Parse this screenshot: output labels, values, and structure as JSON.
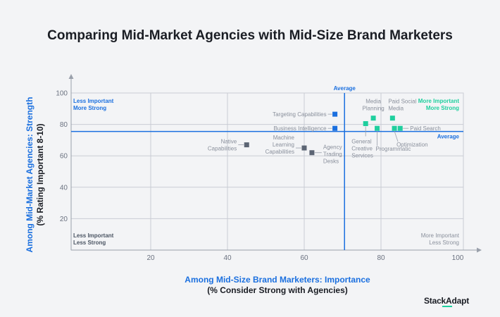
{
  "title": "Comparing Mid-Market Agencies with Mid-Size Brand Marketers",
  "brand": "StackAdapt",
  "colors": {
    "grid": "#c9ccd4",
    "axis": "#9aa0ab",
    "average_line": "#1a6fdf",
    "blue_marker": "#1a6fdf",
    "teal_marker": "#1fcf9e",
    "gray_marker": "#5c6574",
    "teal_text": "#1fcf9e",
    "gray_text": "#8a909c"
  },
  "chart_data": {
    "type": "scatter",
    "title": "Comparing Mid-Market Agencies with Mid-Size Brand Marketers",
    "xlabel": "Among Mid-Size Brand Marketers: Importance",
    "xlabel_sub": "(% Consider Strong with Agencies)",
    "ylabel": "Among Mid-Market Agencies: Strength",
    "ylabel_sub": "(% Rating Important 8-10)",
    "xlim": [
      0,
      100
    ],
    "ylim": [
      0,
      100
    ],
    "xticks": [
      20,
      40,
      60,
      80,
      100
    ],
    "yticks": [
      20,
      40,
      60,
      80,
      100
    ],
    "average_x": 70.5,
    "average_y": 75.5,
    "average_label": "Average",
    "quadrant_labels": {
      "top_left": [
        "Less Important",
        "More Strong"
      ],
      "top_right": [
        "More Important",
        "More Strong"
      ],
      "bottom_left": [
        "Less Important",
        "Less Strong"
      ],
      "bottom_right": [
        "More Important",
        "Less Strong"
      ]
    },
    "points": [
      {
        "label": "Targeting Capabilities",
        "x": 68,
        "y": 86.5,
        "group": "blue"
      },
      {
        "label": "Business Intelligence",
        "x": 68,
        "y": 77.5,
        "group": "blue"
      },
      {
        "label": "Media Planning",
        "x": 78,
        "y": 84,
        "group": "teal"
      },
      {
        "label": "Paid Social Media",
        "x": 83,
        "y": 84,
        "group": "teal"
      },
      {
        "label": "General Creative Services",
        "x": 76,
        "y": 80.5,
        "group": "teal"
      },
      {
        "label": "Programmatic",
        "x": 79,
        "y": 77.5,
        "group": "teal"
      },
      {
        "label": "Optimization",
        "x": 83.5,
        "y": 77.5,
        "group": "teal"
      },
      {
        "label": "Paid Search",
        "x": 85,
        "y": 77.5,
        "group": "teal"
      },
      {
        "label": "Native Capabilities",
        "x": 45,
        "y": 67,
        "group": "gray"
      },
      {
        "label": "Machine Learning Capabilities",
        "x": 60,
        "y": 65,
        "group": "gray"
      },
      {
        "label": "Agency Trading Desks",
        "x": 62,
        "y": 62,
        "group": "gray"
      }
    ]
  }
}
